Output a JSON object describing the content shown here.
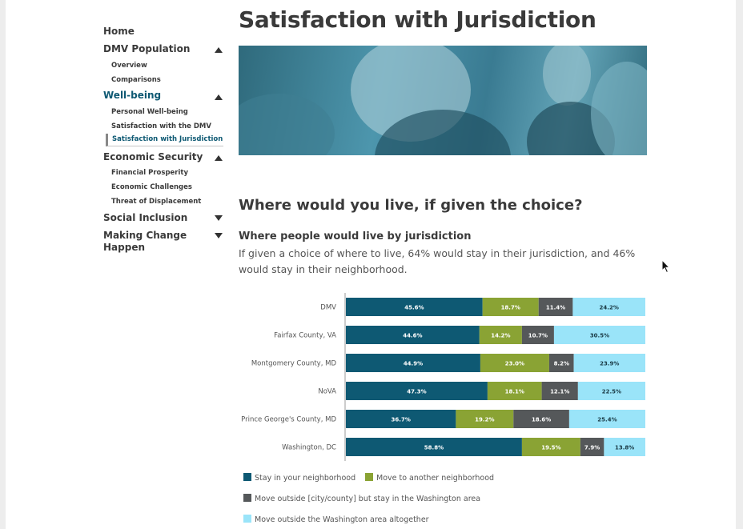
{
  "sidebar": {
    "home": "Home",
    "dmv_population": "DMV Population",
    "overview": "Overview",
    "comparisons": "Comparisons",
    "well_being": "Well-being",
    "personal_well_being": "Personal Well-being",
    "satisfaction_dmv": "Satisfaction with the DMV",
    "satisfaction_jurisdiction": "Satisfaction with Jurisdiction",
    "economic_security": "Economic Security",
    "financial_prosperity": "Financial Prosperity",
    "economic_challenges": "Economic Challenges",
    "threat_displacement": "Threat of Displacement",
    "social_inclusion": "Social Inclusion",
    "making_change_1": "Making Change",
    "making_change_2": "Happen"
  },
  "main": {
    "title": "Satisfaction with Jurisdiction",
    "section_heading": "Where would you live, if given the choice?",
    "chart_heading": "Where people would live by jurisdiction",
    "description": "If given a choice of where to live, 64% would stay in their jurisdiction, and 46% would stay in their neighborhood."
  },
  "colors": {
    "stay_neighborhood": "#0e5973",
    "another_neighborhood": "#8aa334",
    "outside_city": "#55585a",
    "outside_area": "#9ae4f9",
    "active_nav": "#0e5973"
  },
  "chart_data": {
    "type": "bar",
    "orientation": "horizontal",
    "stacked": true,
    "categories": [
      "DMV",
      "Fairfax County, VA",
      "Montgomery County, MD",
      "NoVA",
      "Prince George's County, MD",
      "Washington, DC"
    ],
    "series": [
      {
        "name": "Stay in your neighborhood",
        "values": [
          45.6,
          44.6,
          44.9,
          47.3,
          36.7,
          58.8
        ],
        "labels": [
          "45.6%",
          "44.6%",
          "44.9%",
          "47.3%",
          "36.7%",
          "58.8%"
        ]
      },
      {
        "name": "Move to another neighborhood",
        "values": [
          18.7,
          14.2,
          23.0,
          18.1,
          19.2,
          19.5
        ],
        "labels": [
          "18.7%",
          "14.2%",
          "23.0%",
          "18.1%",
          "19.2%",
          "19.5%"
        ]
      },
      {
        "name": "Move outside [city/county] but stay in the Washington area",
        "values": [
          11.4,
          10.7,
          8.2,
          12.1,
          18.6,
          7.9
        ],
        "labels": [
          "11.4%",
          "10.7%",
          "8.2%",
          "12.1%",
          "18.6%",
          "7.9%"
        ]
      },
      {
        "name": "Move outside the Washington area altogether",
        "values": [
          24.2,
          30.5,
          23.9,
          22.5,
          25.4,
          13.8
        ],
        "labels": [
          "24.2%",
          "30.5%",
          "23.9%",
          "22.5%",
          "25.4%",
          "13.8%"
        ]
      }
    ],
    "xlim": [
      0,
      100
    ],
    "legend_position": "bottom"
  }
}
